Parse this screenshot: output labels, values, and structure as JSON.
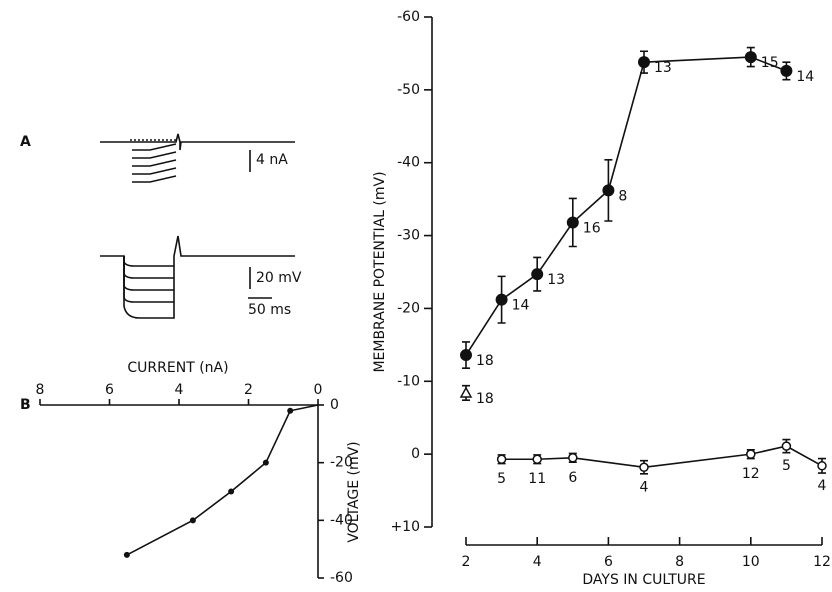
{
  "chart_data": [
    {
      "type": "traces",
      "label": "A",
      "scale_bars": [
        "4 nA",
        "20 mV",
        "50 ms"
      ]
    },
    {
      "type": "scatter",
      "label": "B",
      "xlabel": "CURRENT (nA)",
      "ylabel": "VOLTAGE (mV)",
      "x": [
        0.8,
        1.5,
        2.5,
        3.6,
        5.5
      ],
      "values": [
        -2,
        -20,
        -30,
        -40,
        -52
      ],
      "xlim": [
        8,
        0
      ],
      "xticks": [
        8,
        6,
        4,
        2,
        0
      ],
      "ylim": [
        0,
        -60
      ],
      "yticks": [
        0,
        -20,
        -40,
        -60
      ],
      "color": "#111111"
    },
    {
      "type": "line",
      "xlabel": "DAYS IN CULTURE",
      "ylabel": "MEMBRANE POTENTIAL (mV)",
      "xlim": [
        2,
        12
      ],
      "xticks": [
        2,
        4,
        6,
        8,
        10,
        12
      ],
      "ylim": [
        -60,
        10
      ],
      "yticks": [
        -60,
        -50,
        -40,
        -30,
        -20,
        -10,
        0,
        {
          "value": 10,
          "label": "+10"
        }
      ],
      "series": [
        {
          "marker": "filled-circle",
          "color": "#111111",
          "x": [
            2,
            3,
            4,
            5,
            6,
            7,
            10,
            11
          ],
          "values": [
            -13.6,
            -21.2,
            -24.7,
            -31.8,
            -36.2,
            -53.8,
            -54.5,
            -52.6
          ],
          "errors": [
            1.8,
            3.2,
            2.3,
            3.3,
            4.2,
            1.5,
            1.3,
            1.2
          ],
          "n_labels": [
            "18",
            "14",
            "13",
            "16",
            "8",
            "13",
            "15",
            "14"
          ]
        },
        {
          "marker": "open-triangle",
          "color": "#111111",
          "x": [
            2
          ],
          "values": [
            -8.4
          ],
          "errors": [
            1.0
          ],
          "n_labels": [
            "18"
          ]
        },
        {
          "marker": "open-circle",
          "color": "#111111",
          "x": [
            3,
            4,
            5,
            7,
            10,
            11,
            12
          ],
          "values": [
            0.7,
            0.7,
            0.5,
            1.8,
            0,
            -1.1,
            1.6
          ],
          "errors": [
            0.6,
            0.6,
            0.6,
            0.9,
            0.6,
            0.9,
            1.0
          ],
          "n_labels": [
            "5",
            "11",
            "6",
            "4",
            "12",
            "5",
            "4"
          ]
        }
      ]
    }
  ]
}
